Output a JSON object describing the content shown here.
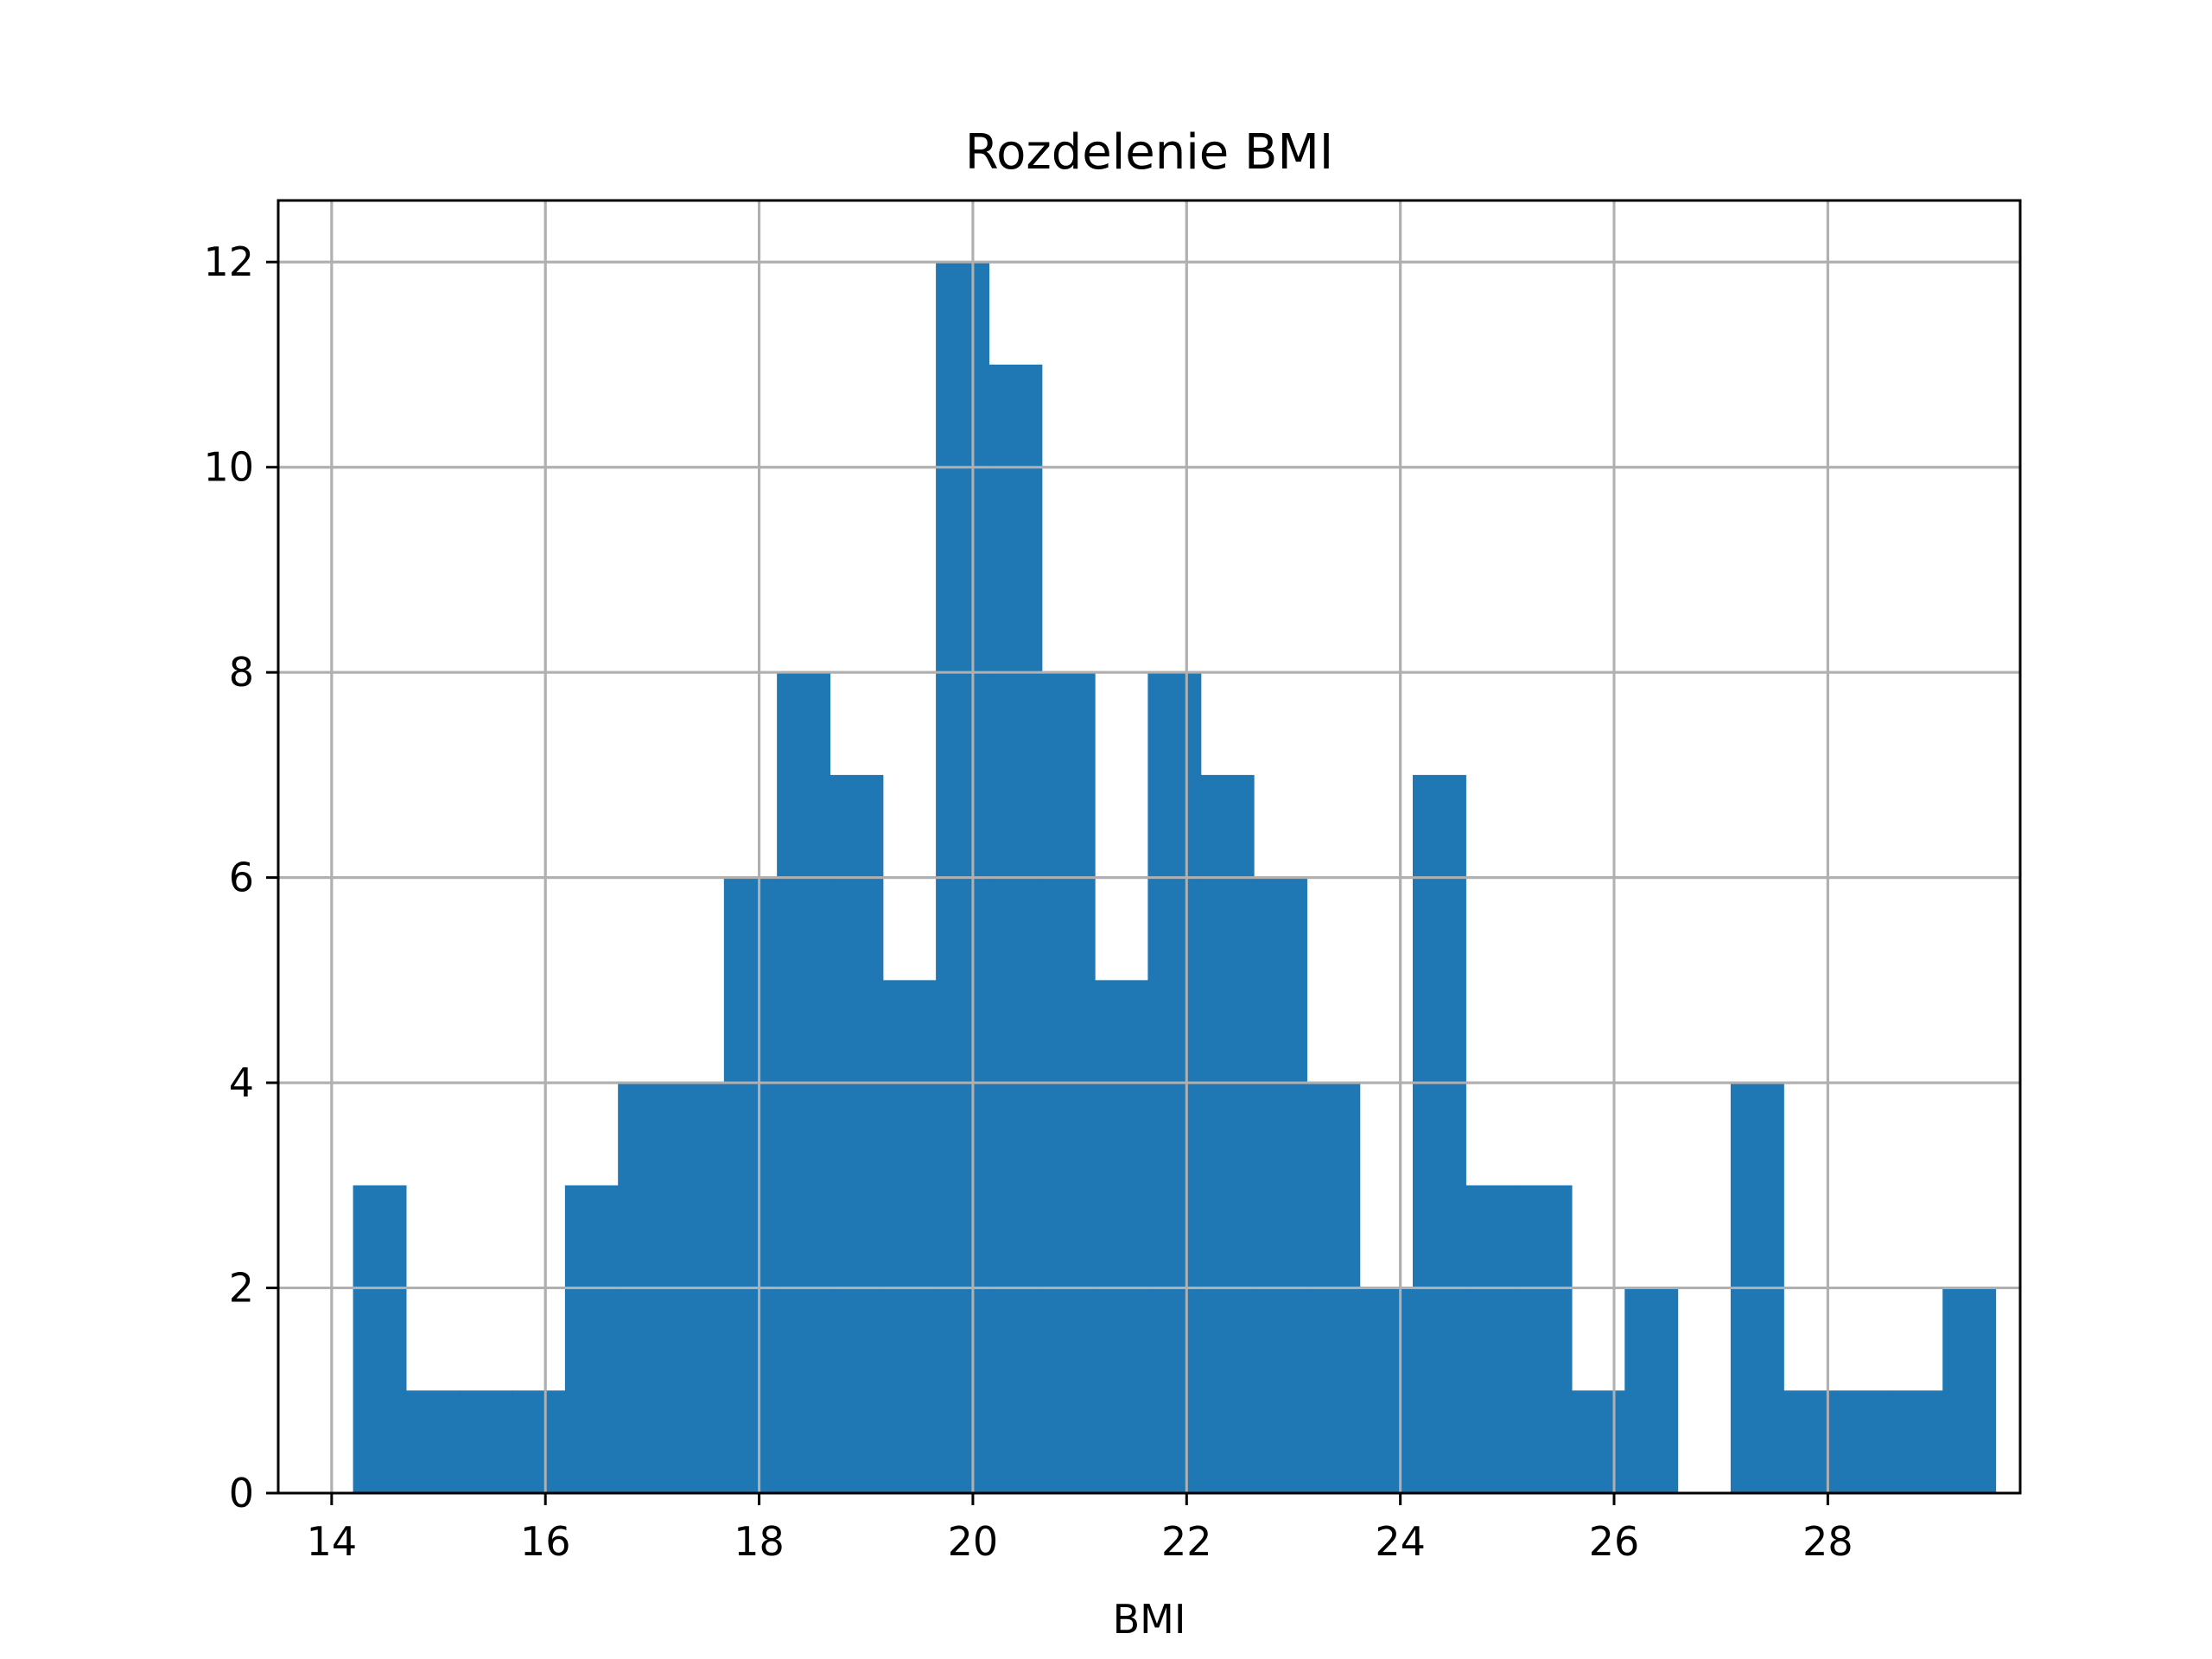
{
  "chart_data": {
    "type": "bar",
    "title": "Rozdelenie BMI",
    "xlabel": "BMI",
    "ylabel": "",
    "xlim": [
      13.5,
      29.8
    ],
    "ylim": [
      0,
      12.6
    ],
    "grid": true,
    "bar_color": "#1f77b4",
    "grid_color": "#b0b0b0",
    "bin_start": 14.2,
    "bin_width": 0.4958,
    "counts": [
      3,
      1,
      1,
      1,
      3,
      4,
      4,
      6,
      8,
      7,
      5,
      12,
      11,
      8,
      5,
      8,
      7,
      6,
      4,
      2,
      7,
      3,
      3,
      1,
      2,
      0,
      4,
      1,
      1,
      1,
      2
    ],
    "x_ticks": [
      14,
      16,
      18,
      20,
      22,
      24,
      26,
      28
    ],
    "x_tick_labels": [
      "14",
      "16",
      "18",
      "20",
      "22",
      "24",
      "26",
      "28"
    ],
    "y_ticks": [
      0,
      2,
      4,
      6,
      8,
      10,
      12
    ],
    "y_tick_labels": [
      "0",
      "2",
      "4",
      "6",
      "8",
      "10",
      "12"
    ]
  }
}
